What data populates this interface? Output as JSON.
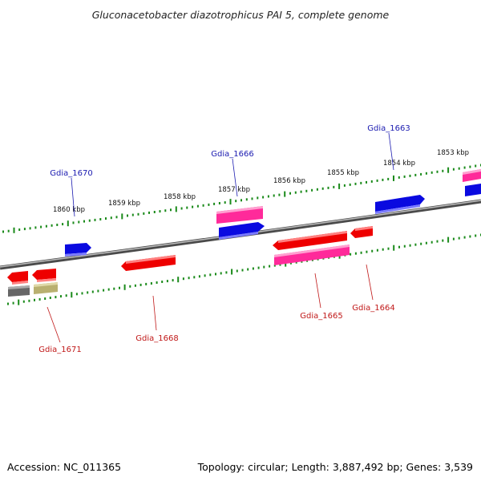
{
  "title": "Gluconacetobacter diazotrophicus PAI 5, complete genome",
  "accession_text": "Accession: NC_011365",
  "summary_text": "Topology: circular; Length: 3,887,492 bp; Genes: 3,539",
  "colors": {
    "backbone": "#777777",
    "tick": "#1a8a1a",
    "gene_red": "#ee0000",
    "gene_pink": "#ff2a9a",
    "gene_blue": "#0a0ae0",
    "gene_gray": "#666666",
    "gene_olive": "#b9b070",
    "label_top": "#1a1ab0",
    "label_bottom": "#c01818"
  },
  "kbp_labels": [
    "1860 kbp",
    "1859 kbp",
    "1858 kbp",
    "1857 kbp",
    "1856 kbp",
    "1855 kbp",
    "1854 kbp",
    "1853 kbp"
  ],
  "gene_labels_top": [
    "Gdia_1670",
    "Gdia_1666",
    "Gdia_1663"
  ],
  "gene_labels_bottom": [
    "Gdia_1671",
    "Gdia_1668",
    "Gdia_1665",
    "Gdia_1664"
  ]
}
